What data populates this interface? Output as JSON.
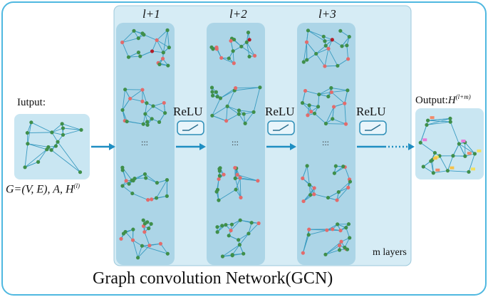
{
  "title": "Graph convolution Network(GCN)",
  "input": {
    "label": "Iutput:",
    "formula_main": "G=(V, E), A, H",
    "formula_sup": "(l)"
  },
  "output": {
    "label": "Output:",
    "symbol": "H",
    "sup": "(l+m)"
  },
  "layers": [
    {
      "label": "l+1"
    },
    {
      "label": "l+2"
    },
    {
      "label": "l+3"
    }
  ],
  "activations": [
    "ReLU",
    "ReLU",
    "ReLU"
  ],
  "ellipsis": ":::",
  "footer_note": "m layers",
  "colors": {
    "frame": "#4fb8e0",
    "panel": "#c9e6f2",
    "column": "#a8d4e6",
    "edge": "#3a9bc0",
    "node_green": "#3f8f4a",
    "node_red": "#e36b6b",
    "node_darkred": "#b01e2a",
    "arrow": "#1f8ec2"
  }
}
